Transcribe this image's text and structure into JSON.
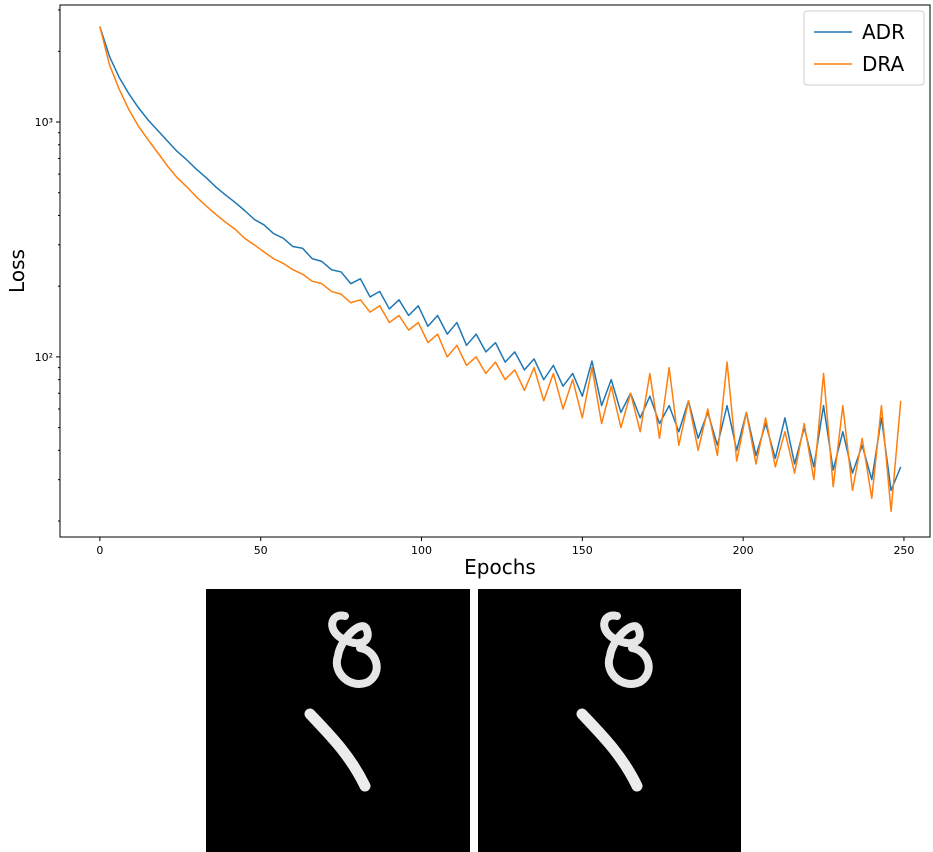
{
  "chart_data": {
    "type": "line",
    "x_label": "Epochs",
    "y_label": "Loss",
    "x": [
      0,
      3,
      6,
      9,
      12,
      15,
      18,
      21,
      24,
      27,
      30,
      33,
      36,
      39,
      42,
      45,
      48,
      51,
      54,
      57,
      60,
      63,
      66,
      69,
      72,
      75,
      78,
      81,
      84,
      87,
      90,
      93,
      96,
      99,
      102,
      105,
      108,
      111,
      114,
      117,
      120,
      123,
      126,
      129,
      132,
      135,
      138,
      141,
      144,
      147,
      150,
      153,
      156,
      159,
      162,
      165,
      168,
      171,
      174,
      177,
      180,
      183,
      186,
      189,
      192,
      195,
      198,
      201,
      204,
      207,
      210,
      213,
      216,
      219,
      222,
      225,
      228,
      231,
      234,
      237,
      240,
      243,
      246,
      249
    ],
    "series": [
      {
        "name": "ADR",
        "color": "#1f77b4",
        "values": [
          2550,
          1900,
          1550,
          1320,
          1150,
          1020,
          920,
          830,
          750,
          690,
          630,
          580,
          530,
          490,
          455,
          420,
          385,
          365,
          335,
          320,
          295,
          290,
          262,
          255,
          235,
          230,
          205,
          215,
          180,
          190,
          160,
          175,
          150,
          165,
          135,
          150,
          125,
          140,
          112,
          125,
          105,
          115,
          95,
          105,
          88,
          98,
          80,
          92,
          75,
          85,
          68,
          96,
          62,
          80,
          58,
          70,
          55,
          68,
          52,
          62,
          48,
          65,
          45,
          58,
          42,
          62,
          40,
          58,
          38,
          52,
          37,
          55,
          35,
          50,
          34,
          62,
          33,
          48,
          32,
          42,
          30,
          55,
          27,
          34
        ]
      },
      {
        "name": "DRA",
        "color": "#ff7f0e",
        "values": [
          2550,
          1750,
          1380,
          1130,
          960,
          840,
          740,
          650,
          580,
          530,
          480,
          440,
          405,
          375,
          350,
          320,
          300,
          280,
          262,
          250,
          235,
          225,
          210,
          205,
          190,
          185,
          170,
          175,
          155,
          165,
          140,
          150,
          130,
          140,
          115,
          125,
          100,
          112,
          92,
          100,
          85,
          95,
          80,
          88,
          72,
          90,
          65,
          85,
          60,
          80,
          55,
          90,
          52,
          75,
          50,
          70,
          48,
          85,
          45,
          90,
          42,
          65,
          40,
          60,
          38,
          95,
          36,
          58,
          35,
          55,
          34,
          48,
          32,
          52,
          30,
          85,
          28,
          62,
          27,
          45,
          25,
          62,
          22,
          65
        ]
      }
    ],
    "xlim": [
      -12.4,
      258.1
    ],
    "xticks": [
      0,
      50,
      100,
      150,
      200,
      250
    ],
    "ylim": [
      17.1,
      3150
    ],
    "log_y": true,
    "yticks": [
      {
        "value": 100,
        "label": "10²"
      },
      {
        "value": 1000,
        "label": "10³"
      }
    ],
    "yminorticks": [
      20,
      30,
      40,
      50,
      60,
      70,
      80,
      90,
      200,
      300,
      400,
      500,
      600,
      700,
      800,
      900,
      2000,
      3000
    ],
    "legend": "upper right"
  }
}
